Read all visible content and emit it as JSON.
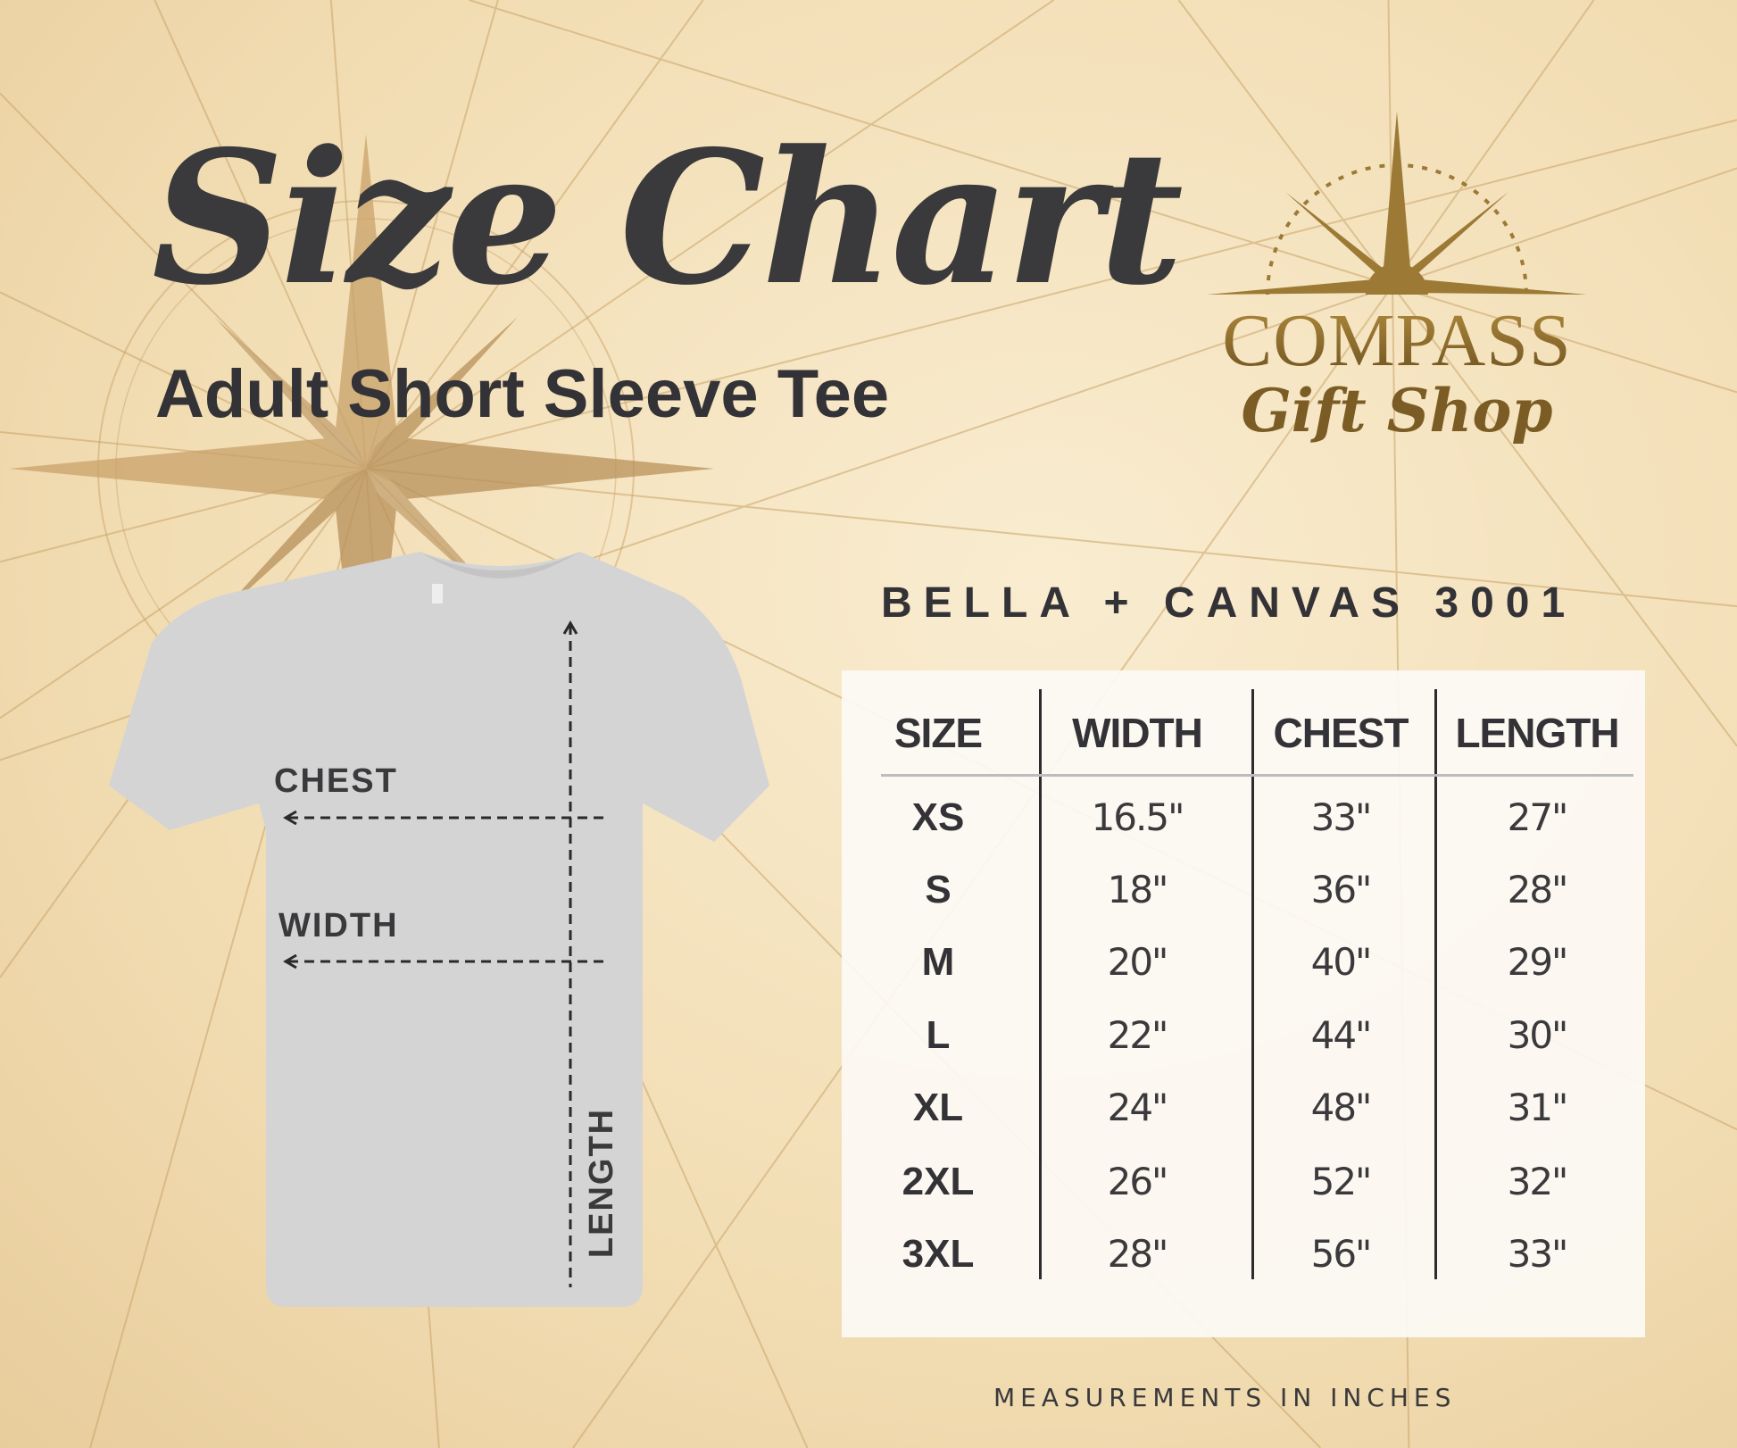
{
  "header": {
    "title": "Size Chart",
    "subtitle": "Adult Short Sleeve Tee"
  },
  "logo": {
    "line1": "COMPASS",
    "line2": "Gift Shop",
    "color": "#8a6a2a"
  },
  "diagram": {
    "chest_label": "CHEST",
    "width_label": "WIDTH",
    "length_label": "LENGTH",
    "shirt_color": "#d4d4d4"
  },
  "chart_data": {
    "type": "table",
    "title": "BELLA + CANVAS 3001",
    "columns": [
      "SIZE",
      "WIDTH",
      "CHEST",
      "LENGTH"
    ],
    "rows": [
      [
        "XS",
        "16.5\"",
        "33\"",
        "27\""
      ],
      [
        "S",
        "18\"",
        "36\"",
        "28\""
      ],
      [
        "M",
        "20\"",
        "40\"",
        "29\""
      ],
      [
        "L",
        "22\"",
        "44\"",
        "30\""
      ],
      [
        "XL",
        "24\"",
        "48\"",
        "31\""
      ],
      [
        "2XL",
        "26\"",
        "52\"",
        "32\""
      ],
      [
        "3XL",
        "28\"",
        "56\"",
        "33\""
      ]
    ]
  },
  "footer": {
    "note": "MEASUREMENTS IN INCHES"
  },
  "colors": {
    "background": "#f2ddb3",
    "text": "#333236",
    "panel": "#fcfaf5"
  }
}
